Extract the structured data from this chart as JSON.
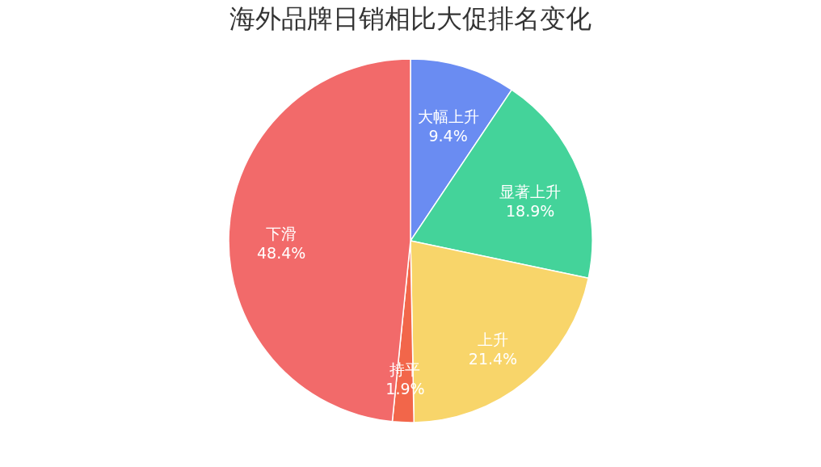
{
  "chart_data": {
    "type": "pie",
    "title": "海外品牌日销相比大促排名变化",
    "categories": [
      "大幅上升",
      "显著上升",
      "上升",
      "持平",
      "下滑"
    ],
    "values": [
      9.4,
      18.9,
      21.4,
      1.9,
      48.4
    ],
    "value_labels": [
      "9.4%",
      "18.9%",
      "21.4%",
      "1.9%",
      "48.4%"
    ],
    "colors": [
      "#6a8cf2",
      "#44d39a",
      "#f8d56a",
      "#f2664a",
      "#f26a6a"
    ],
    "legend": false
  }
}
